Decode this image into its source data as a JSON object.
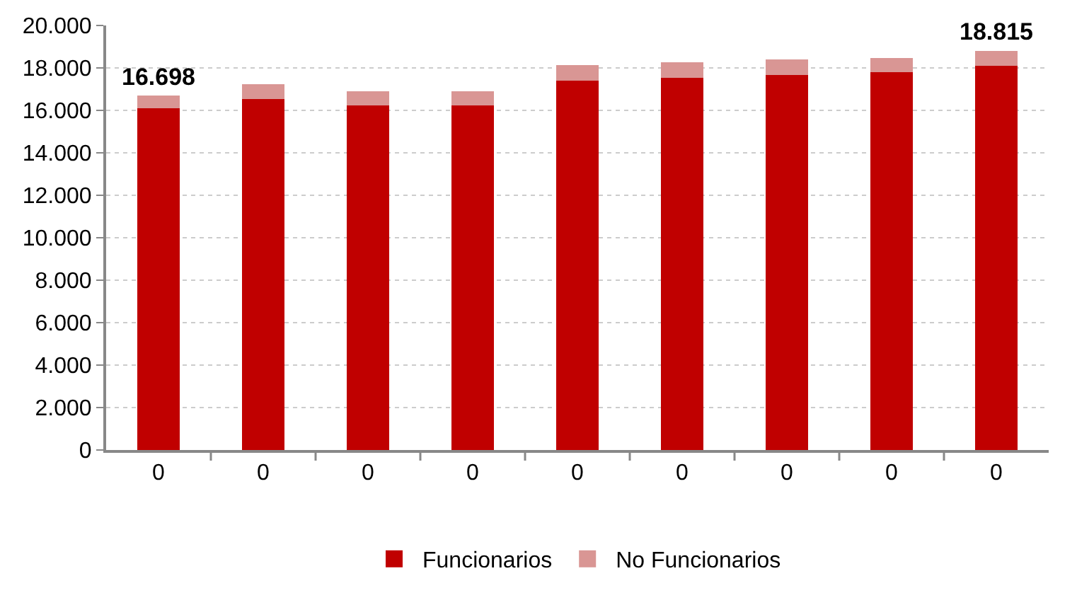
{
  "chart_data": {
    "type": "bar",
    "stacked": true,
    "categories": [
      "0",
      "0",
      "0",
      "0",
      "0",
      "0",
      "0",
      "0",
      "0"
    ],
    "series": [
      {
        "name": "Funcionarios",
        "color": "#c00000",
        "values": [
          16100,
          16550,
          16250,
          16250,
          17400,
          17530,
          17660,
          17790,
          18100
        ]
      },
      {
        "name": "No Funcionarios",
        "color": "#d99694",
        "values": [
          598,
          700,
          640,
          640,
          730,
          750,
          740,
          680,
          715
        ]
      }
    ],
    "totals": [
      "16.698",
      null,
      null,
      null,
      null,
      null,
      null,
      null,
      "18.815"
    ],
    "ylim": [
      0,
      20000
    ],
    "yticks": [
      {
        "value": 0,
        "label": "0"
      },
      {
        "value": 2000,
        "label": "2.000"
      },
      {
        "value": 4000,
        "label": "4.000"
      },
      {
        "value": 6000,
        "label": "6.000"
      },
      {
        "value": 8000,
        "label": "8.000"
      },
      {
        "value": 10000,
        "label": "10.000"
      },
      {
        "value": 12000,
        "label": "12.000"
      },
      {
        "value": 14000,
        "label": "14.000"
      },
      {
        "value": 16000,
        "label": "16.000"
      },
      {
        "value": 18000,
        "label": "18.000"
      },
      {
        "value": 20000,
        "label": "20.000"
      }
    ],
    "grid": "y",
    "legend": "bottom"
  }
}
